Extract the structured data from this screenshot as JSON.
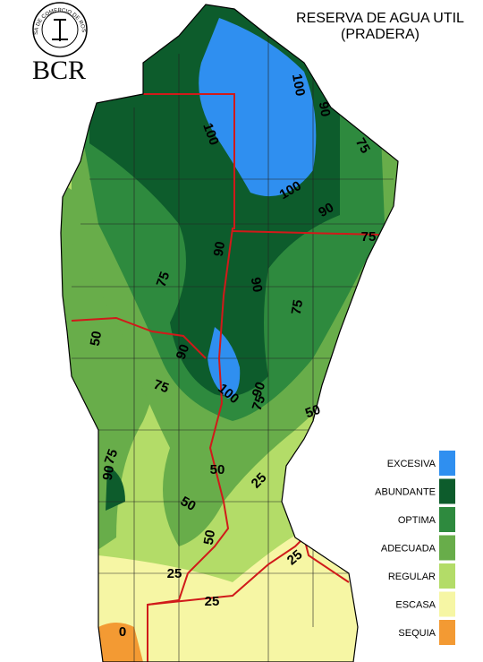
{
  "header": {
    "logo_text": "BOLSA DE COMERCIO DE ROSARIO",
    "logo": "BCR",
    "title": "RESERVA DE AGUA UTIL",
    "subtitle": "(PRADERA)"
  },
  "legend": [
    {
      "label": "EXCESIVA",
      "color": "#2f8ff0"
    },
    {
      "label": "ABUNDANTE",
      "color": "#0d5c2c"
    },
    {
      "label": "OPTIMA",
      "color": "#2e8a3e"
    },
    {
      "label": "ADECUADA",
      "color": "#68ad4a"
    },
    {
      "label": "REGULAR",
      "color": "#b3dc68"
    },
    {
      "label": "ESCASA",
      "color": "#f6f6a4"
    },
    {
      "label": "SEQUIA",
      "color": "#f39a33"
    }
  ],
  "contour_labels": [
    "100",
    "90",
    "75",
    "100",
    "100",
    "90",
    "75",
    "90",
    "90",
    "75",
    "75",
    "50",
    "90",
    "75",
    "100",
    "90",
    "75",
    "50",
    "75",
    "90",
    "50",
    "25",
    "50",
    "50",
    "25",
    "25",
    "25",
    "0"
  ]
}
